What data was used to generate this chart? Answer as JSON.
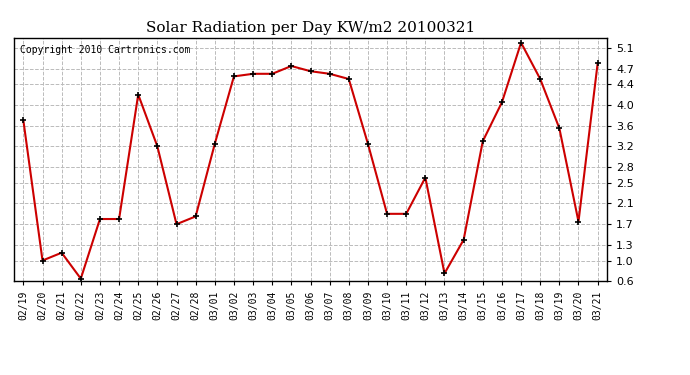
{
  "title": "Solar Radiation per Day KW/m2 20100321",
  "copyright": "Copyright 2010 Cartronics.com",
  "dates": [
    "02/19",
    "02/20",
    "02/21",
    "02/22",
    "02/23",
    "02/24",
    "02/25",
    "02/26",
    "02/27",
    "02/28",
    "03/01",
    "03/02",
    "03/03",
    "03/04",
    "03/05",
    "03/06",
    "03/07",
    "03/08",
    "03/09",
    "03/10",
    "03/11",
    "03/12",
    "03/13",
    "03/14",
    "03/15",
    "03/16",
    "03/17",
    "03/18",
    "03/19",
    "03/20",
    "03/21"
  ],
  "values": [
    3.7,
    1.0,
    1.15,
    0.65,
    1.8,
    1.8,
    4.2,
    3.2,
    1.7,
    1.85,
    3.25,
    4.55,
    4.6,
    4.6,
    4.75,
    4.65,
    4.6,
    4.5,
    3.25,
    1.9,
    1.9,
    2.6,
    0.75,
    1.4,
    3.3,
    4.05,
    5.2,
    4.5,
    3.55,
    1.75,
    4.8
  ],
  "line_color": "#cc0000",
  "marker_color": "#000000",
  "bg_color": "#ffffff",
  "grid_color": "#bbbbbb",
  "ylim": [
    0.6,
    5.3
  ],
  "yticks": [
    0.6,
    1.0,
    1.3,
    1.7,
    2.1,
    2.5,
    2.8,
    3.2,
    3.6,
    4.0,
    4.4,
    4.7,
    5.1
  ],
  "title_fontsize": 11,
  "copyright_fontsize": 7,
  "tick_fontsize": 7,
  "ytick_fontsize": 8
}
